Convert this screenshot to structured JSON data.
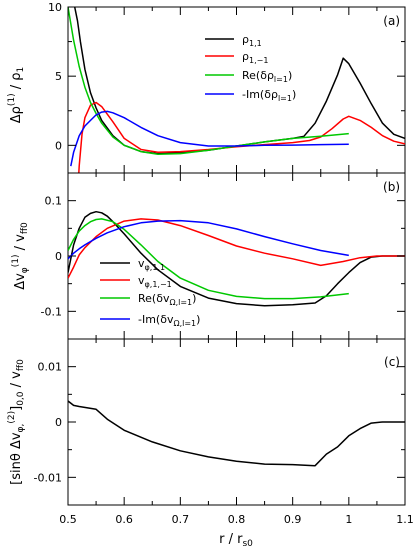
{
  "figure": {
    "xlabel_main": "r / r",
    "xlabel_sub": "s0",
    "x_ticks": [
      "0.5",
      "0.6",
      "0.7",
      "0.8",
      "0.9",
      "1",
      "1.1"
    ],
    "xlim": [
      0.5,
      1.1
    ]
  },
  "chart_data": [
    {
      "type": "line",
      "panel_label": "(a)",
      "ylabel": "Δρ(1) / ρ1",
      "ylim": [
        -2,
        10
      ],
      "y_ticks": [
        0,
        5,
        10
      ],
      "x_ticks": [
        0.5,
        0.6,
        0.7,
        0.8,
        0.9,
        1.0,
        1.1
      ],
      "legend_position": "top-right",
      "series": [
        {
          "name": "ρ1,1",
          "color": "#000000",
          "x": [
            0.508,
            0.512,
            0.517,
            0.522,
            0.53,
            0.54,
            0.55,
            0.56,
            0.58,
            0.6,
            0.63,
            0.66,
            0.7,
            0.75,
            0.8,
            0.85,
            0.9,
            0.92,
            0.94,
            0.96,
            0.98,
            0.99,
            1.0,
            1.02,
            1.04,
            1.06,
            1.08,
            1.1
          ],
          "y": [
            11,
            10,
            9,
            7.5,
            5.5,
            3.8,
            2.7,
            1.8,
            0.7,
            0.0,
            -0.45,
            -0.6,
            -0.55,
            -0.35,
            -0.05,
            0.25,
            0.5,
            0.65,
            1.6,
            3.2,
            5.1,
            6.3,
            5.9,
            4.5,
            3.0,
            1.6,
            0.8,
            0.5
          ]
        },
        {
          "name": "ρ1,−1",
          "color": "#ff0000",
          "x": [
            0.515,
            0.52,
            0.525,
            0.53,
            0.54,
            0.55,
            0.56,
            0.58,
            0.6,
            0.63,
            0.66,
            0.7,
            0.75,
            0.8,
            0.85,
            0.9,
            0.93,
            0.95,
            0.97,
            0.99,
            1.0,
            1.02,
            1.04,
            1.06,
            1.08,
            1.1
          ],
          "y": [
            -5,
            -1.5,
            0.8,
            2.0,
            2.9,
            3.1,
            2.8,
            1.7,
            0.5,
            -0.3,
            -0.5,
            -0.45,
            -0.3,
            -0.1,
            0.05,
            0.2,
            0.35,
            0.6,
            1.2,
            1.9,
            2.1,
            1.8,
            1.3,
            0.7,
            0.3,
            0.1
          ]
        },
        {
          "name": "Re(δρl=1)",
          "color": "#00c800",
          "x": [
            0.5,
            0.51,
            0.52,
            0.53,
            0.54,
            0.55,
            0.56,
            0.58,
            0.6,
            0.63,
            0.66,
            0.7,
            0.75,
            0.8,
            0.85,
            0.9,
            0.95,
            1.0
          ],
          "y": [
            10,
            7.6,
            5.7,
            4.2,
            3.1,
            2.3,
            1.6,
            0.6,
            0.0,
            -0.45,
            -0.65,
            -0.6,
            -0.35,
            -0.05,
            0.25,
            0.5,
            0.65,
            0.85
          ]
        },
        {
          "name": "-Im(δρl=1)",
          "color": "#0000ff",
          "x": [
            0.505,
            0.51,
            0.52,
            0.53,
            0.54,
            0.55,
            0.56,
            0.57,
            0.58,
            0.6,
            0.63,
            0.66,
            0.7,
            0.75,
            0.8,
            0.85,
            0.9,
            0.95,
            1.0
          ],
          "y": [
            -1.5,
            -0.5,
            0.7,
            1.4,
            1.8,
            2.2,
            2.4,
            2.45,
            2.35,
            2.0,
            1.3,
            0.7,
            0.2,
            -0.05,
            -0.05,
            0.0,
            0.02,
            0.05,
            0.08
          ]
        }
      ]
    },
    {
      "type": "line",
      "panel_label": "(b)",
      "ylabel": "Δvφ(1) / vff0",
      "ylim": [
        -0.15,
        0.15
      ],
      "y_ticks": [
        -0.1,
        0,
        0.1
      ],
      "x_ticks": [
        0.5,
        0.6,
        0.7,
        0.8,
        0.9,
        1.0,
        1.1
      ],
      "legend_position": "bottom-right",
      "series": [
        {
          "name": "vφ,1,1",
          "color": "#000000",
          "x": [
            0.5,
            0.51,
            0.52,
            0.53,
            0.54,
            0.55,
            0.56,
            0.57,
            0.58,
            0.6,
            0.63,
            0.66,
            0.7,
            0.75,
            0.8,
            0.85,
            0.9,
            0.94,
            0.96,
            0.98,
            1.0,
            1.02,
            1.04,
            1.06,
            1.08,
            1.1
          ],
          "y": [
            -0.03,
            0.02,
            0.05,
            0.07,
            0.077,
            0.08,
            0.078,
            0.072,
            0.062,
            0.04,
            0.005,
            -0.025,
            -0.055,
            -0.076,
            -0.086,
            -0.09,
            -0.088,
            -0.085,
            -0.072,
            -0.05,
            -0.03,
            -0.012,
            -0.002,
            0.0,
            0.0,
            0.0
          ]
        },
        {
          "name": "vφ,1,−1",
          "color": "#ff0000",
          "x": [
            0.5,
            0.51,
            0.52,
            0.53,
            0.55,
            0.57,
            0.6,
            0.63,
            0.66,
            0.7,
            0.75,
            0.8,
            0.85,
            0.9,
            0.95,
            0.99,
            1.02,
            1.05,
            1.08,
            1.1
          ],
          "y": [
            -0.04,
            -0.02,
            0.002,
            0.015,
            0.035,
            0.05,
            0.063,
            0.067,
            0.065,
            0.055,
            0.037,
            0.018,
            0.005,
            -0.005,
            -0.017,
            -0.01,
            -0.003,
            0.0,
            0.0,
            0.0
          ]
        },
        {
          "name": "Re(δvΩ,l=1)",
          "color": "#00c800",
          "x": [
            0.5,
            0.51,
            0.52,
            0.53,
            0.54,
            0.55,
            0.56,
            0.58,
            0.6,
            0.63,
            0.66,
            0.7,
            0.75,
            0.8,
            0.85,
            0.9,
            0.95,
            1.0
          ],
          "y": [
            0.01,
            0.03,
            0.045,
            0.055,
            0.062,
            0.066,
            0.067,
            0.062,
            0.048,
            0.02,
            -0.01,
            -0.04,
            -0.062,
            -0.073,
            -0.077,
            -0.077,
            -0.074,
            -0.068
          ]
        },
        {
          "name": "-Im(δvΩ,l=1)",
          "color": "#0000ff",
          "x": [
            0.5,
            0.51,
            0.52,
            0.53,
            0.55,
            0.57,
            0.6,
            0.63,
            0.66,
            0.7,
            0.75,
            0.8,
            0.85,
            0.9,
            0.95,
            1.0
          ],
          "y": [
            -0.005,
            0.005,
            0.013,
            0.02,
            0.032,
            0.042,
            0.053,
            0.06,
            0.063,
            0.064,
            0.06,
            0.049,
            0.035,
            0.022,
            0.01,
            0.001
          ]
        }
      ]
    },
    {
      "type": "line",
      "panel_label": "(c)",
      "ylabel": "[sinθ Δvφ,(2)]0,0 / vff0",
      "ylim": [
        -0.015,
        0.015
      ],
      "y_ticks": [
        -0.01,
        0,
        0.01
      ],
      "x_ticks": [
        0.5,
        0.6,
        0.7,
        0.8,
        0.9,
        1.0,
        1.1
      ],
      "series": [
        {
          "name": "",
          "color": "#000000",
          "x": [
            0.5,
            0.51,
            0.52,
            0.55,
            0.57,
            0.6,
            0.65,
            0.7,
            0.75,
            0.8,
            0.85,
            0.9,
            0.94,
            0.96,
            0.98,
            1.0,
            1.02,
            1.04,
            1.06,
            1.08,
            1.1
          ],
          "y": [
            0.0038,
            0.003,
            0.0028,
            0.0023,
            0.0005,
            -0.0015,
            -0.0036,
            -0.0052,
            -0.0063,
            -0.0071,
            -0.0076,
            -0.0077,
            -0.0079,
            -0.0058,
            -0.0045,
            -0.0025,
            -0.0012,
            -0.0002,
            0.0,
            0.0,
            0.0
          ]
        }
      ]
    }
  ]
}
